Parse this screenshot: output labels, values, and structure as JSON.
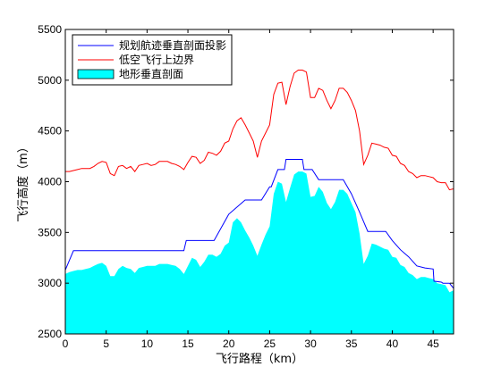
{
  "chart_data": {
    "type": "line",
    "xlabel": "飞行路程（km）",
    "ylabel": "飞行高度（m）",
    "xlim": [
      0,
      47.5
    ],
    "ylim": [
      2500,
      5500
    ],
    "xticks": [
      "0",
      "5",
      "10",
      "15",
      "20",
      "25",
      "30",
      "35",
      "40",
      "45"
    ],
    "xtick_values": [
      0,
      5,
      10,
      15,
      20,
      25,
      30,
      35,
      40,
      45
    ],
    "yticks": [
      "2500",
      "3000",
      "3500",
      "4000",
      "4500",
      "5000",
      "5500"
    ],
    "ytick_values": [
      2500,
      3000,
      3500,
      4000,
      4500,
      5000,
      5500
    ],
    "grid": false,
    "legend_position": "top-left",
    "series": [
      {
        "name": "规划航迹垂直剖面投影",
        "color": "#0000ff",
        "style": "line",
        "x": [
          0,
          1,
          2,
          5,
          8,
          10,
          12,
          14.5,
          14.8,
          15,
          18,
          18.2,
          20,
          22,
          22.2,
          24,
          25,
          25.2,
          26,
          26.8,
          27,
          29,
          29.2,
          30,
          30.2,
          31,
          33,
          34,
          35,
          36,
          37,
          37.2,
          39,
          39.2,
          40,
          41,
          42,
          43,
          44,
          45,
          45.1,
          46,
          46.2,
          47,
          47.5
        ],
        "y": [
          3130,
          3320,
          3320,
          3320,
          3320,
          3320,
          3320,
          3320,
          3420,
          3420,
          3420,
          3420,
          3680,
          3820,
          3820,
          3820,
          3950,
          3950,
          4120,
          4120,
          4220,
          4220,
          4120,
          4120,
          4120,
          4020,
          4020,
          4020,
          3880,
          3700,
          3510,
          3510,
          3510,
          3510,
          3420,
          3330,
          3260,
          3170,
          3150,
          3140,
          3020,
          3010,
          3000,
          3000,
          2950
        ]
      },
      {
        "name": "低空飞行上边界",
        "color": "#ff0000",
        "style": "line",
        "x": [
          0,
          0.5,
          1,
          1.5,
          2,
          2.5,
          3,
          3.5,
          4,
          4.5,
          5,
          5.5,
          6,
          6.5,
          7,
          7.5,
          8,
          8.5,
          9,
          9.5,
          10,
          10.5,
          11,
          11.5,
          12,
          12.5,
          13,
          13.5,
          14,
          14.5,
          15,
          15.5,
          16,
          16.5,
          17,
          17.5,
          18,
          18.5,
          19,
          19.5,
          20,
          20.5,
          21,
          21.5,
          22,
          22.5,
          23,
          23.5,
          24,
          24.5,
          25,
          25.5,
          26,
          26.5,
          27,
          27.5,
          28,
          28.5,
          29,
          29.5,
          30,
          30.5,
          31,
          31.5,
          32,
          32.5,
          33,
          33.5,
          34,
          34.5,
          35,
          35.5,
          36,
          36.5,
          37,
          37.5,
          38,
          38.5,
          39,
          39.5,
          40,
          40.5,
          41,
          41.5,
          42,
          42.5,
          43,
          43.5,
          44,
          44.5,
          45,
          45.5,
          46,
          46.5,
          47,
          47.5
        ],
        "y": [
          4100,
          4100,
          4110,
          4120,
          4130,
          4130,
          4130,
          4150,
          4180,
          4200,
          4190,
          4080,
          4060,
          4150,
          4160,
          4130,
          4150,
          4100,
          4160,
          4170,
          4180,
          4160,
          4170,
          4200,
          4200,
          4200,
          4180,
          4170,
          4150,
          4120,
          4190,
          4250,
          4240,
          4180,
          4210,
          4290,
          4280,
          4260,
          4300,
          4380,
          4400,
          4520,
          4600,
          4630,
          4560,
          4480,
          4400,
          4240,
          4400,
          4480,
          4560,
          4860,
          4970,
          4980,
          4760,
          4940,
          5070,
          5100,
          5100,
          5080,
          4830,
          4830,
          4920,
          4900,
          4800,
          4720,
          4800,
          4920,
          4920,
          4880,
          4800,
          4700,
          4500,
          4170,
          4260,
          4380,
          4370,
          4360,
          4340,
          4330,
          4260,
          4250,
          4180,
          4160,
          4100,
          4080,
          4040,
          4060,
          4060,
          4050,
          4040,
          4000,
          3990,
          3990,
          3920,
          3930
        ]
      },
      {
        "name": "地形垂直剖面",
        "color": "#00ffff",
        "style": "area",
        "x": [
          0,
          0.5,
          1,
          1.5,
          2,
          2.5,
          3,
          3.5,
          4,
          4.5,
          5,
          5.5,
          6,
          6.5,
          7,
          7.5,
          8,
          8.5,
          9,
          9.5,
          10,
          10.5,
          11,
          11.5,
          12,
          12.5,
          13,
          13.5,
          14,
          14.5,
          15,
          15.5,
          16,
          16.5,
          17,
          17.5,
          18,
          18.5,
          19,
          19.5,
          20,
          20.5,
          21,
          21.5,
          22,
          22.5,
          23,
          23.5,
          24,
          24.5,
          25,
          25.5,
          26,
          26.5,
          27,
          27.5,
          28,
          28.5,
          29,
          29.5,
          30,
          30.5,
          31,
          31.5,
          32,
          32.5,
          33,
          33.5,
          34,
          34.5,
          35,
          35.5,
          36,
          36.5,
          37,
          37.5,
          38,
          38.5,
          39,
          39.5,
          40,
          40.5,
          41,
          41.5,
          42,
          42.5,
          43,
          43.5,
          44,
          44.5,
          45,
          45.5,
          46,
          46.5,
          47,
          47.5
        ],
        "y": [
          3090,
          3110,
          3120,
          3130,
          3130,
          3140,
          3150,
          3170,
          3190,
          3200,
          3170,
          3070,
          3070,
          3140,
          3170,
          3150,
          3140,
          3100,
          3150,
          3160,
          3170,
          3170,
          3170,
          3190,
          3190,
          3190,
          3180,
          3170,
          3140,
          3090,
          3170,
          3250,
          3230,
          3160,
          3210,
          3280,
          3280,
          3260,
          3290,
          3370,
          3400,
          3600,
          3640,
          3600,
          3520,
          3450,
          3370,
          3270,
          3380,
          3480,
          3560,
          3880,
          4000,
          3980,
          3800,
          3940,
          4070,
          4100,
          4100,
          4080,
          3850,
          3860,
          3950,
          3900,
          3790,
          3730,
          3800,
          3920,
          3920,
          3880,
          3790,
          3700,
          3490,
          3190,
          3270,
          3390,
          3380,
          3360,
          3340,
          3330,
          3260,
          3250,
          3180,
          3160,
          3100,
          3080,
          3040,
          3060,
          3060,
          3050,
          3040,
          3000,
          2990,
          2980,
          2910,
          2930
        ]
      }
    ]
  }
}
